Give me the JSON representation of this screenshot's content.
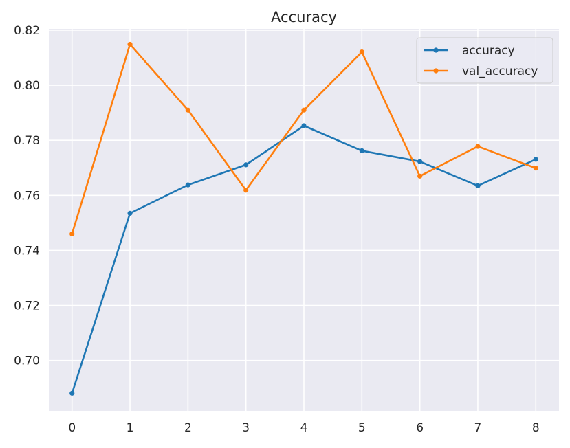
{
  "chart_data": {
    "type": "line",
    "title": "Accuracy",
    "xlabel": "",
    "ylabel": "",
    "x": [
      0,
      1,
      2,
      3,
      4,
      5,
      6,
      7,
      8
    ],
    "xticks": [
      "0",
      "1",
      "2",
      "3",
      "4",
      "5",
      "6",
      "7",
      "8"
    ],
    "yticks": [
      "0.70",
      "0.72",
      "0.74",
      "0.76",
      "0.78",
      "0.80",
      "0.82"
    ],
    "xlim": [
      -0.4,
      8.4
    ],
    "ylim": [
      0.6817,
      0.8205
    ],
    "grid": true,
    "background_color": "#eaeaf2",
    "grid_color": "#ffffff",
    "legend_position": "top-right",
    "series": [
      {
        "name": "accuracy",
        "color": "#1f77b4",
        "marker": "circle",
        "values": [
          0.6881,
          0.7535,
          0.7638,
          0.7711,
          0.7853,
          0.7762,
          0.7723,
          0.7635,
          0.7731
        ]
      },
      {
        "name": "val_accuracy",
        "color": "#ff7f0e",
        "marker": "circle",
        "values": [
          0.746,
          0.8149,
          0.791,
          0.7619,
          0.791,
          0.8121,
          0.767,
          0.7778,
          0.7699
        ]
      }
    ]
  }
}
